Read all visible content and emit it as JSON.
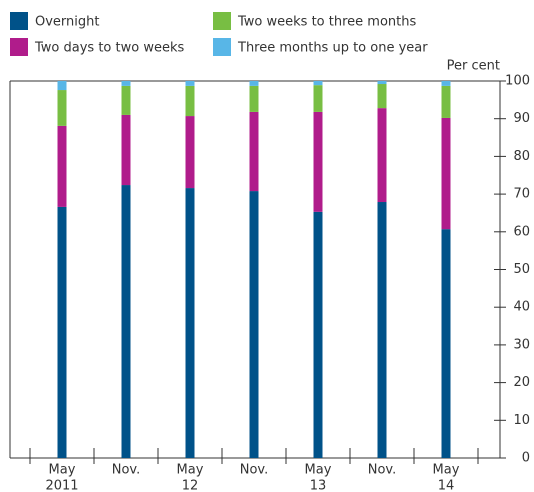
{
  "chart_data": {
    "type": "stacked_bar",
    "categories": [
      "May",
      "Nov.",
      "May",
      "Nov.",
      "May",
      "Nov.",
      "May"
    ],
    "x_sub_labels": [
      "2011",
      null,
      "12",
      null,
      "13",
      null,
      "14"
    ],
    "y_axis_label": "Per cent",
    "series": [
      {
        "name": "Overnight",
        "color": "#005289",
        "values": [
          66.6,
          72.4,
          71.6,
          70.8,
          65.3,
          67.9,
          60.7
        ]
      },
      {
        "name": "Two days to two weeks",
        "color": "#b01c8b",
        "values": [
          21.5,
          18.6,
          19.1,
          21.0,
          26.5,
          24.9,
          29.5
        ]
      },
      {
        "name": "Two weeks to three months",
        "color": "#78be43",
        "values": [
          9.5,
          7.7,
          8.0,
          6.9,
          7.1,
          6.4,
          8.5
        ]
      },
      {
        "name": "Three months up to one year",
        "color": "#58b6e7",
        "values": [
          2.4,
          1.3,
          1.3,
          1.3,
          1.1,
          0.8,
          1.3
        ]
      }
    ],
    "ylim": [
      0,
      100
    ],
    "yticks": [
      0,
      10,
      20,
      30,
      40,
      50,
      60,
      70,
      80,
      90,
      100
    ],
    "legend": "top"
  }
}
